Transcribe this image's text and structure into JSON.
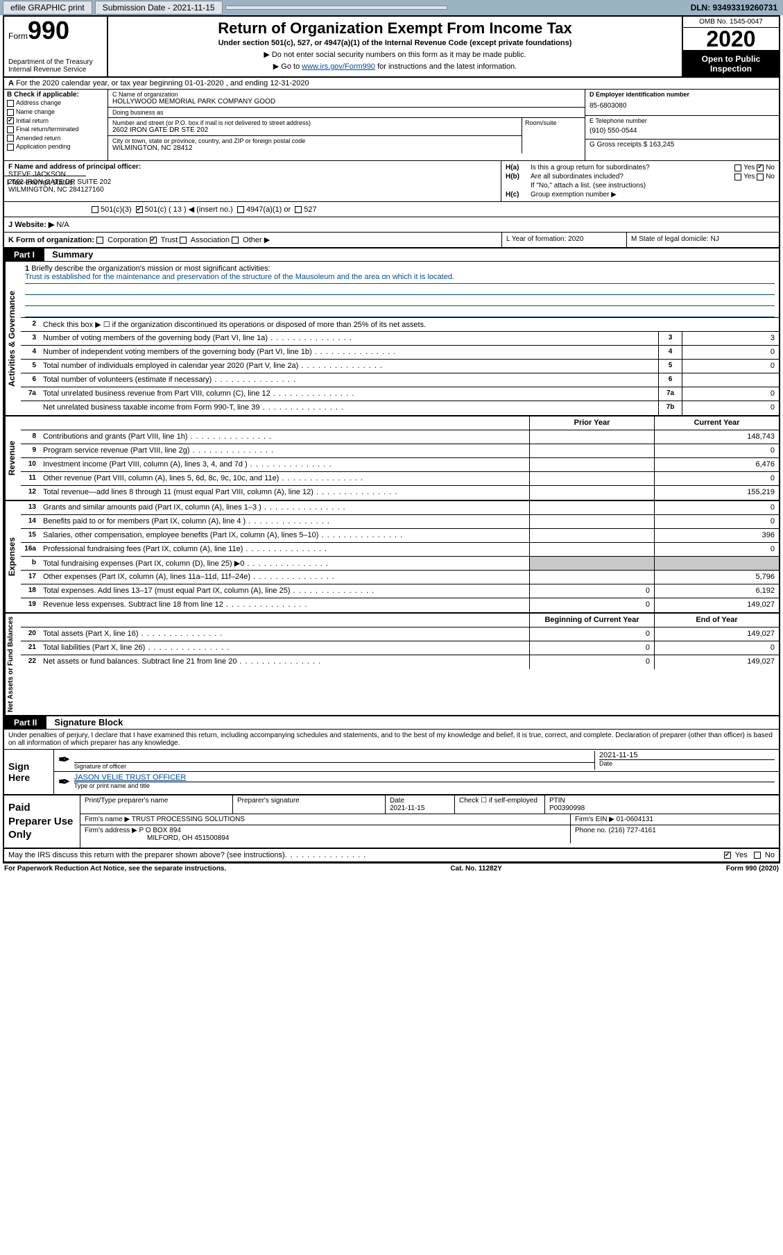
{
  "topbar": {
    "efile": "efile GRAPHIC print",
    "sub_label": "Submission Date - 2021-11-15",
    "dln": "DLN: 93493319260731"
  },
  "header": {
    "form_word": "Form",
    "form_num": "990",
    "dept": "Department of the Treasury\nInternal Revenue Service",
    "title": "Return of Organization Exempt From Income Tax",
    "subtitle": "Under section 501(c), 527, or 4947(a)(1) of the Internal Revenue Code (except private foundations)",
    "arrow1": "▶ Do not enter social security numbers on this form as it may be made public.",
    "arrow2_pre": "▶ Go to ",
    "arrow2_link": "www.irs.gov/Form990",
    "arrow2_post": " for instructions and the latest information.",
    "omb": "OMB No. 1545-0047",
    "year": "2020",
    "open": "Open to Public Inspection"
  },
  "rowA": "For the 2020 calendar year, or tax year beginning 01-01-2020  , and ending 12-31-2020",
  "B": {
    "hdr": "B Check if applicable:",
    "addr": "Address change",
    "name": "Name change",
    "initial": "Initial return",
    "final": "Final return/terminated",
    "amended": "Amended return",
    "app": "Application pending"
  },
  "C": {
    "name_lbl": "C Name of organization",
    "name": "HOLLYWOOD MEMORIAL PARK COMPANY GOOD",
    "dba_lbl": "Doing business as",
    "dba": "",
    "street_lbl": "Number and street (or P.O. box if mail is not delivered to street address)",
    "street": "2602 IRON GATE DR STE 202",
    "suite_lbl": "Room/suite",
    "city_lbl": "City or town, state or province, country, and ZIP or foreign postal code",
    "city": "WILMINGTON, NC  28412"
  },
  "D": {
    "ein_lbl": "D Employer identification number",
    "ein": "85-6803080",
    "tel_lbl": "E Telephone number",
    "tel": "(910) 550-0544",
    "gross_lbl": "G Gross receipts $ 163,245"
  },
  "F": {
    "lbl": "F Name and address of principal officer:",
    "name": "STEVE JACKSON",
    "addr1": "2602 IRON GATE DR SUITE 202",
    "addr2": "WILMINGTON, NC  284127160"
  },
  "H": {
    "a_lbl": "H(a)",
    "a_txt": "Is this a group return for subordinates?",
    "b_lbl": "H(b)",
    "b_txt": "Are all subordinates included?",
    "note": "If \"No,\" attach a list. (see instructions)",
    "c_lbl": "H(c)",
    "c_txt": "Group exemption number ▶",
    "yes": "Yes",
    "no": "No"
  },
  "I": {
    "lbl": "I",
    "txt": "Tax-exempt status:",
    "o1": "501(c)(3)",
    "o2": "501(c) ( 13 ) ◀ (insert no.)",
    "o3": "4947(a)(1) or",
    "o4": "527"
  },
  "J": {
    "lbl": "J",
    "txt": "Website: ▶",
    "val": "N/A"
  },
  "K": {
    "lbl": "K Form of organization:",
    "o1": "Corporation",
    "o2": "Trust",
    "o3": "Association",
    "o4": "Other ▶",
    "L": "L Year of formation: 2020",
    "M": "M State of legal domicile: NJ"
  },
  "partI": {
    "hdr": "Part I",
    "title": "Summary"
  },
  "summary": {
    "l1_lbl": "1",
    "l1_txt": "Briefly describe the organization's mission or most significant activities:",
    "mission": "Trust is established for the maintenance and preservation of the structure of the Mausoleum and the area on which it is located.",
    "l2_txt": "Check this box ▶ ☐  if the organization discontinued its operations or disposed of more than 25% of its net assets.",
    "lines_gov": [
      {
        "n": "3",
        "t": "Number of voting members of the governing body (Part VI, line 1a)",
        "b": "3",
        "v": "3"
      },
      {
        "n": "4",
        "t": "Number of independent voting members of the governing body (Part VI, line 1b)",
        "b": "4",
        "v": "0"
      },
      {
        "n": "5",
        "t": "Total number of individuals employed in calendar year 2020 (Part V, line 2a)",
        "b": "5",
        "v": "0"
      },
      {
        "n": "6",
        "t": "Total number of volunteers (estimate if necessary)",
        "b": "6",
        "v": ""
      },
      {
        "n": "7a",
        "t": "Total unrelated business revenue from Part VIII, column (C), line 12",
        "b": "7a",
        "v": "0"
      },
      {
        "n": "",
        "t": "Net unrelated business taxable income from Form 990-T, line 39",
        "b": "7b",
        "v": "0"
      }
    ],
    "prior_hdr": "Prior Year",
    "curr_hdr": "Current Year",
    "rev": [
      {
        "n": "8",
        "t": "Contributions and grants (Part VIII, line 1h)",
        "p": "",
        "c": "148,743"
      },
      {
        "n": "9",
        "t": "Program service revenue (Part VIII, line 2g)",
        "p": "",
        "c": "0"
      },
      {
        "n": "10",
        "t": "Investment income (Part VIII, column (A), lines 3, 4, and 7d )",
        "p": "",
        "c": "6,476"
      },
      {
        "n": "11",
        "t": "Other revenue (Part VIII, column (A), lines 5, 6d, 8c, 9c, 10c, and 11e)",
        "p": "",
        "c": "0"
      },
      {
        "n": "12",
        "t": "Total revenue—add lines 8 through 11 (must equal Part VIII, column (A), line 12)",
        "p": "",
        "c": "155,219"
      }
    ],
    "exp": [
      {
        "n": "13",
        "t": "Grants and similar amounts paid (Part IX, column (A), lines 1–3 )",
        "p": "",
        "c": "0"
      },
      {
        "n": "14",
        "t": "Benefits paid to or for members (Part IX, column (A), line 4 )",
        "p": "",
        "c": "0"
      },
      {
        "n": "15",
        "t": "Salaries, other compensation, employee benefits (Part IX, column (A), lines 5–10)",
        "p": "",
        "c": "396"
      },
      {
        "n": "16a",
        "t": "Professional fundraising fees (Part IX, column (A), line 11e)",
        "p": "",
        "c": "0"
      },
      {
        "n": "b",
        "t": "Total fundraising expenses (Part IX, column (D), line 25) ▶0",
        "p": "shade",
        "c": "shade"
      },
      {
        "n": "17",
        "t": "Other expenses (Part IX, column (A), lines 11a–11d, 11f–24e)",
        "p": "",
        "c": "5,796"
      },
      {
        "n": "18",
        "t": "Total expenses. Add lines 13–17 (must equal Part IX, column (A), line 25)",
        "p": "0",
        "c": "6,192"
      },
      {
        "n": "19",
        "t": "Revenue less expenses. Subtract line 18 from line 12",
        "p": "0",
        "c": "149,027"
      }
    ],
    "beg_hdr": "Beginning of Current Year",
    "end_hdr": "End of Year",
    "net": [
      {
        "n": "20",
        "t": "Total assets (Part X, line 16)",
        "p": "0",
        "c": "149,027"
      },
      {
        "n": "21",
        "t": "Total liabilities (Part X, line 26)",
        "p": "0",
        "c": "0"
      },
      {
        "n": "22",
        "t": "Net assets or fund balances. Subtract line 21 from line 20",
        "p": "0",
        "c": "149,027"
      }
    ]
  },
  "vtabs": {
    "gov": "Activities & Governance",
    "rev": "Revenue",
    "exp": "Expenses",
    "net": "Net Assets or Fund Balances"
  },
  "partII": {
    "hdr": "Part II",
    "title": "Signature Block"
  },
  "perjury": "Under penalties of perjury, I declare that I have examined this return, including accompanying schedules and statements, and to the best of my knowledge and belief, it is true, correct, and complete. Declaration of preparer (other than officer) is based on all information of which preparer has any knowledge.",
  "sign": {
    "left": "Sign Here",
    "sig_lbl": "Signature of officer",
    "date": "2021-11-15",
    "date_lbl": "Date",
    "name": "JASON VELIE TRUST OFFICER",
    "name_lbl": "Type or print name and title"
  },
  "paid": {
    "left": "Paid Preparer Use Only",
    "r1c1_lbl": "Print/Type preparer's name",
    "r1c2_lbl": "Preparer's signature",
    "r1c3_lbl": "Date",
    "r1c3_val": "2021-11-15",
    "r1c4": "Check ☐ if self-employed",
    "r1c5_lbl": "PTIN",
    "r1c5_val": "P00390998",
    "r2_lbl": "Firm's name    ▶",
    "r2_val": "TRUST PROCESSING SOLUTIONS",
    "r2_ein": "Firm's EIN ▶ 01-0604131",
    "r3_lbl": "Firm's address ▶",
    "r3_val": "P O BOX 894",
    "r3_val2": "MILFORD, OH  451500894",
    "r3_tel": "Phone no. (216) 727-4161"
  },
  "discuss": "May the IRS discuss this return with the preparer shown above? (see instructions)",
  "footer": {
    "left": "For Paperwork Reduction Act Notice, see the separate instructions.",
    "mid": "Cat. No. 11282Y",
    "right": "Form 990 (2020)"
  }
}
